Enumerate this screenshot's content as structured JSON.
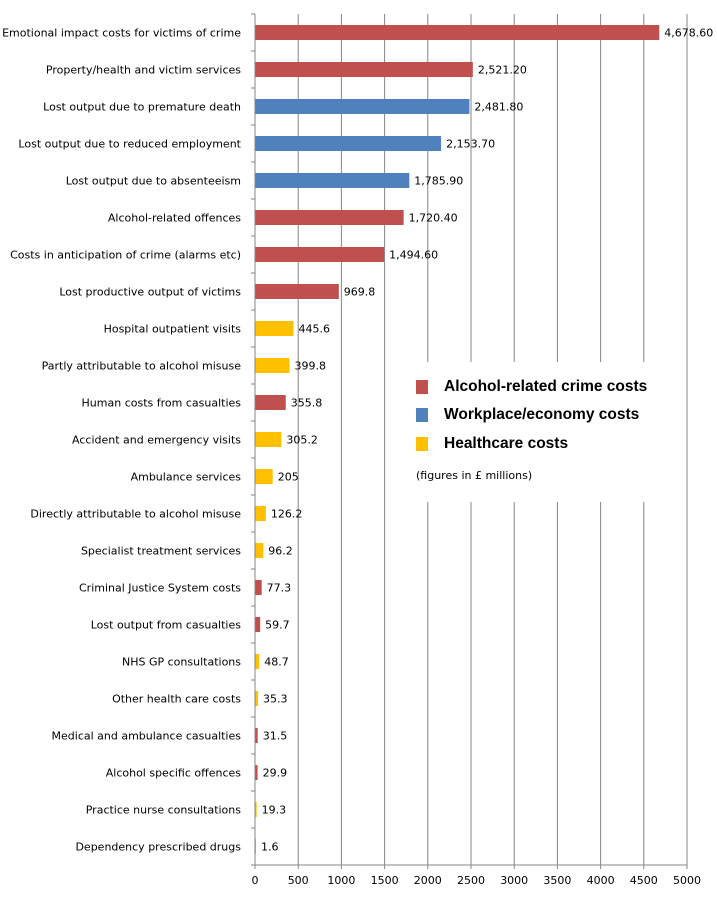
{
  "chart_data": {
    "type": "bar",
    "orientation": "horizontal",
    "categories": [
      "Emotional impact costs for victims of crime",
      "Property/health and victim services",
      "Lost output due to premature death",
      "Lost output due to reduced employment",
      "Lost output due to absenteeism",
      "Alcohol-related offences",
      "Costs in anticipation of crime (alarms etc)",
      "Lost productive output of victims",
      "Hospital outpatient visits",
      "Partly attributable to alcohol misuse",
      "Human costs from casualties",
      "Accident and emergency visits",
      "Ambulance services",
      "Directly attributable to alcohol misuse",
      "Specialist treatment services",
      "Criminal Justice System costs",
      "Lost output from casualties",
      "NHS GP consultations",
      "Other health care costs",
      "Medical and ambulance casualties",
      "Alcohol specific offences",
      "Practice nurse consultations",
      "Dependency prescribed drugs"
    ],
    "values": [
      4678.6,
      2521.2,
      2481.8,
      2153.7,
      1785.9,
      1720.4,
      1494.6,
      969.8,
      445.6,
      399.8,
      355.8,
      305.2,
      205,
      126.2,
      96.2,
      77.3,
      59.7,
      48.7,
      35.3,
      31.5,
      29.9,
      19.3,
      1.6
    ],
    "value_labels": [
      "4,678.60",
      "2,521.20",
      "2,481.80",
      "2,153.70",
      "1,785.90",
      "1,720.40",
      "1,494.60",
      "969.8",
      "445.6",
      "399.8",
      "355.8",
      "305.2",
      "205",
      "126.2",
      "96.2",
      "77.3",
      "59.7",
      "48.7",
      "35.3",
      "31.5",
      "29.9",
      "19.3",
      "1.6"
    ],
    "groups": [
      "crime",
      "crime",
      "workplace",
      "workplace",
      "workplace",
      "crime",
      "crime",
      "crime",
      "health",
      "health",
      "crime",
      "health",
      "health",
      "health",
      "health",
      "crime",
      "crime",
      "health",
      "health",
      "crime",
      "crime",
      "health",
      "health"
    ],
    "legend": [
      {
        "key": "crime",
        "name": "Alcohol-related crime costs",
        "color": "#C0504D"
      },
      {
        "key": "workplace",
        "name": "Workplace/economy costs",
        "color": "#4F81BD"
      },
      {
        "key": "health",
        "name": "Healthcare costs",
        "color": "#FFC000"
      }
    ],
    "note": "(figures in £ millions)",
    "xticks": [
      "0",
      "500",
      "1000",
      "1500",
      "2000",
      "2500",
      "3000",
      "3500",
      "4000",
      "4500",
      "5000"
    ],
    "xlim": [
      0,
      5000
    ],
    "grid": "vertical",
    "legend_position": "right-middle",
    "title": "",
    "xlabel": "",
    "ylabel": ""
  }
}
